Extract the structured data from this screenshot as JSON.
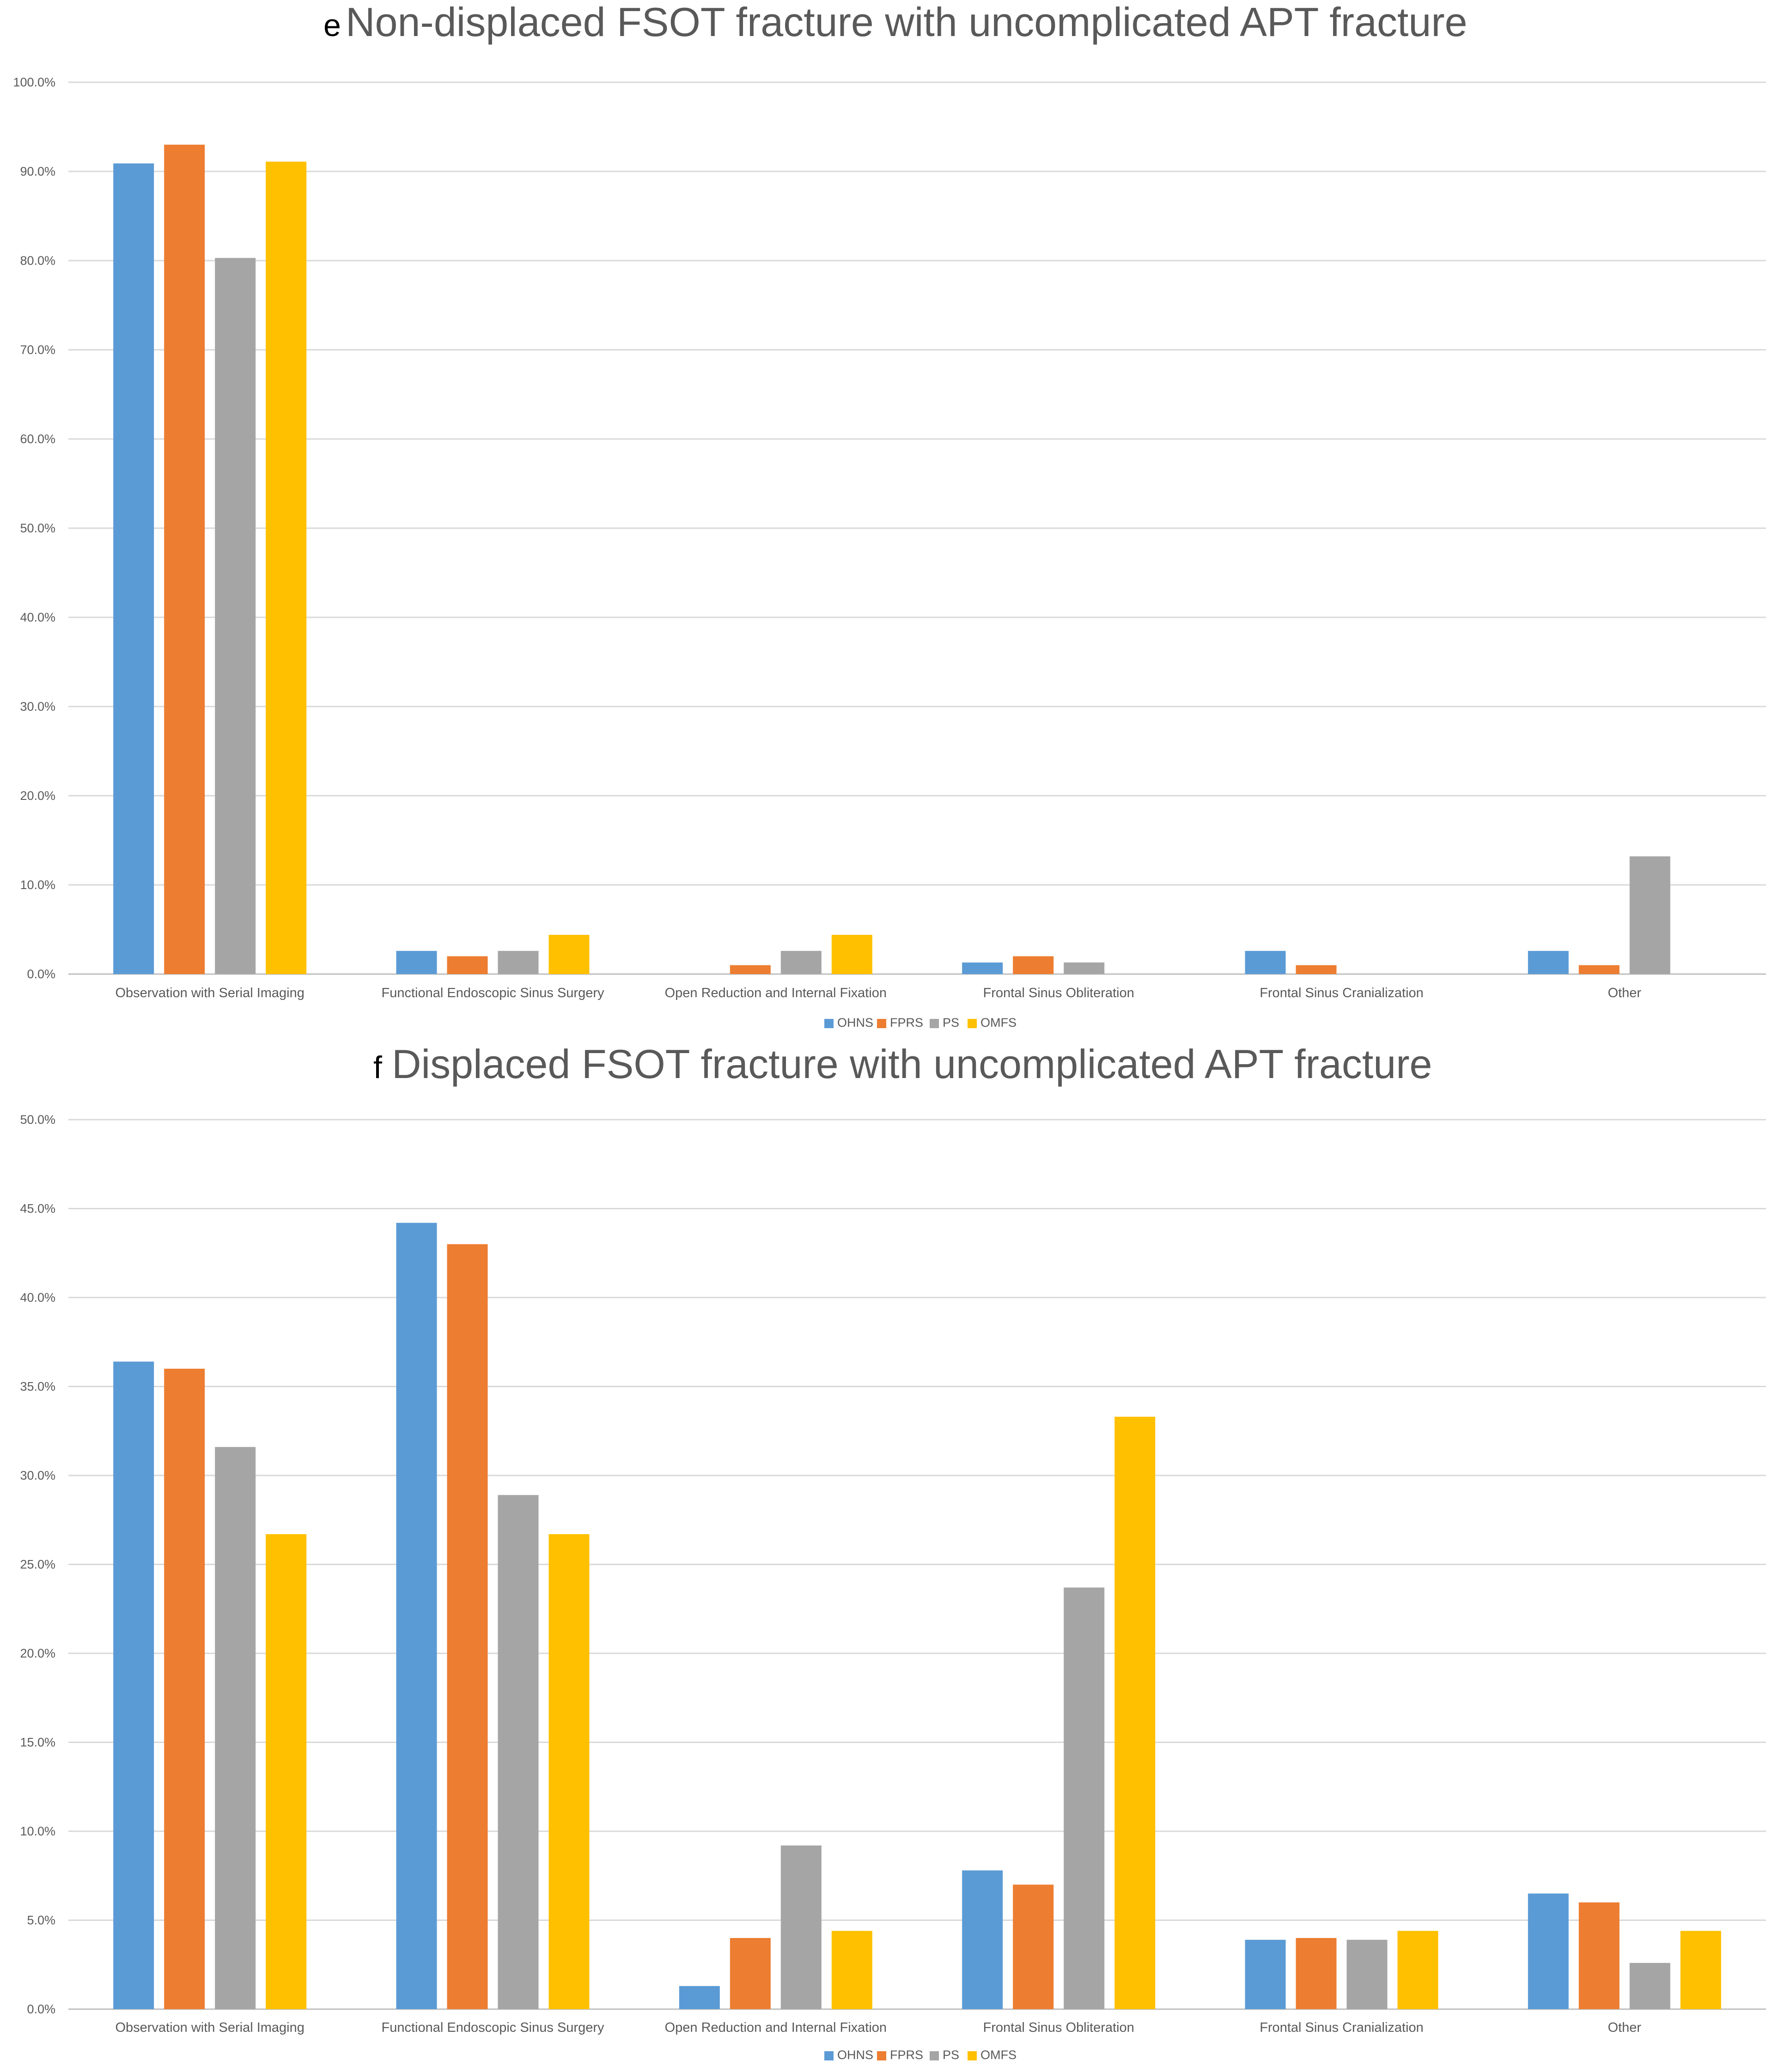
{
  "colors": {
    "OHNS": "#5b9bd5",
    "FPRS": "#ed7d31",
    "PS": "#a5a5a5",
    "OMFS": "#ffc000",
    "grid": "#d9d9d9",
    "text": "#595959"
  },
  "chart_data": [
    {
      "type": "bar",
      "panel_letter": "e",
      "title": "Non-displaced FSOT fracture with uncomplicated APT fracture",
      "categories": [
        "Observation with Serial Imaging",
        "Functional Endoscopic Sinus Surgery",
        "Open Reduction and Internal Fixation",
        "Frontal Sinus Obliteration",
        "Frontal Sinus Cranialization",
        "Other"
      ],
      "series": [
        {
          "name": "OHNS",
          "values": [
            90.9,
            2.6,
            0.0,
            1.3,
            2.6,
            2.6
          ]
        },
        {
          "name": "FPRS",
          "values": [
            93.0,
            2.0,
            1.0,
            2.0,
            1.0,
            1.0
          ]
        },
        {
          "name": "PS",
          "values": [
            80.3,
            2.6,
            2.6,
            1.3,
            0.0,
            13.2
          ]
        },
        {
          "name": "OMFS",
          "values": [
            91.1,
            4.4,
            4.4,
            0.0,
            0.0,
            0.0
          ]
        }
      ],
      "ylim": [
        0,
        100
      ],
      "yticks": [
        "0.0%",
        "10.0%",
        "20.0%",
        "30.0%",
        "40.0%",
        "50.0%",
        "60.0%",
        "70.0%",
        "80.0%",
        "90.0%",
        "100.0%"
      ],
      "legend_position": "bottom",
      "legend": [
        "OHNS",
        "FPRS",
        "PS",
        "OMFS"
      ]
    },
    {
      "type": "bar",
      "panel_letter": "f",
      "title": "Displaced FSOT fracture with uncomplicated APT fracture",
      "categories": [
        "Observation with Serial Imaging",
        "Functional Endoscopic Sinus Surgery",
        "Open Reduction and Internal Fixation",
        "Frontal Sinus Obliteration",
        "Frontal Sinus Cranialization",
        "Other"
      ],
      "series": [
        {
          "name": "OHNS",
          "values": [
            36.4,
            44.2,
            1.3,
            7.8,
            3.9,
            6.5
          ]
        },
        {
          "name": "FPRS",
          "values": [
            36.0,
            43.0,
            4.0,
            7.0,
            4.0,
            6.0
          ]
        },
        {
          "name": "PS",
          "values": [
            31.6,
            28.9,
            9.2,
            23.7,
            3.9,
            2.6
          ]
        },
        {
          "name": "OMFS",
          "values": [
            26.7,
            26.7,
            4.4,
            33.3,
            4.4,
            4.4
          ]
        }
      ],
      "ylim": [
        0,
        50
      ],
      "yticks": [
        "0.0%",
        "5.0%",
        "10.0%",
        "15.0%",
        "20.0%",
        "25.0%",
        "30.0%",
        "35.0%",
        "40.0%",
        "45.0%",
        "50.0%"
      ],
      "legend_position": "bottom",
      "legend": [
        "OHNS",
        "FPRS",
        "PS",
        "OMFS"
      ]
    }
  ]
}
